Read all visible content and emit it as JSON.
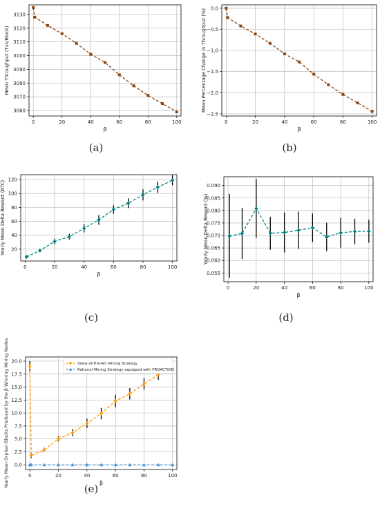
{
  "panel_labels": [
    "(a)",
    "(b)",
    "(c)",
    "(d)",
    "(e)"
  ],
  "chart_data": [
    {
      "type": "line",
      "panel": "(a)",
      "xlabel": "β",
      "ylabel": "Mean Throughput (Txs/Block)",
      "xlim": [
        -3,
        103
      ],
      "ylim": [
        3056,
        3137
      ],
      "xticks": [
        0,
        20,
        40,
        60,
        80,
        100
      ],
      "yticks": [
        3060,
        3070,
        3080,
        3090,
        3100,
        3110,
        3120,
        3130
      ],
      "grid": true,
      "series": [
        {
          "color": "#8B4513",
          "x": [
            0,
            1,
            10,
            20,
            30,
            40,
            50,
            60,
            70,
            80,
            90,
            100
          ],
          "y": [
            3135,
            3128,
            3122,
            3116,
            3109,
            3101,
            3095,
            3086,
            3078,
            3071,
            3065,
            3059
          ]
        }
      ]
    },
    {
      "type": "line",
      "panel": "(b)",
      "xlabel": "β",
      "ylabel": "Mean Percentage Change in Throughput (%)",
      "xlim": [
        -3,
        103
      ],
      "ylim": [
        -2.55,
        0.08
      ],
      "xticks": [
        0,
        20,
        40,
        60,
        80,
        100
      ],
      "yticks": [
        0.0,
        -0.5,
        -1.0,
        -1.5,
        -2.0,
        -2.5
      ],
      "ytick_labels": [
        "0.0",
        "−0.5",
        "−1.0",
        "−1.5",
        "−2.0",
        "−2.5"
      ],
      "grid": true,
      "series": [
        {
          "color": "#8B4513",
          "x": [
            0,
            1,
            10,
            20,
            30,
            40,
            50,
            60,
            70,
            80,
            90,
            100
          ],
          "y": [
            0.0,
            -0.22,
            -0.42,
            -0.61,
            -0.83,
            -1.08,
            -1.27,
            -1.56,
            -1.81,
            -2.04,
            -2.24,
            -2.44
          ]
        }
      ]
    },
    {
      "type": "line",
      "panel": "(c)",
      "xlabel": "β",
      "ylabel": "Yearly Mean Delta Reward (BTC)",
      "xlim": [
        -3,
        103
      ],
      "ylim": [
        3,
        127
      ],
      "xticks": [
        0,
        20,
        40,
        60,
        80,
        100
      ],
      "yticks": [
        20,
        40,
        60,
        80,
        100,
        120
      ],
      "grid": true,
      "series": [
        {
          "color": "#008080",
          "x": [
            1,
            10,
            20,
            30,
            40,
            50,
            60,
            70,
            80,
            90,
            100
          ],
          "y": [
            9,
            18,
            31,
            38,
            50,
            62,
            77,
            86,
            98,
            109,
            119
          ],
          "err": [
            1,
            2,
            4,
            4,
            6,
            7,
            6,
            7,
            8,
            8,
            7
          ]
        }
      ]
    },
    {
      "type": "line",
      "panel": "(d)",
      "xlabel": "β",
      "ylabel": "Yearly Mean Delta Reward (%)",
      "xlim": [
        -3,
        103
      ],
      "ylim": [
        0.0515,
        0.0935
      ],
      "xticks": [
        0,
        20,
        40,
        60,
        80,
        100
      ],
      "yticks": [
        0.055,
        0.06,
        0.065,
        0.07,
        0.075,
        0.08,
        0.085,
        0.09
      ],
      "ytick_labels": [
        "0.055",
        "0.060",
        "0.065",
        "0.070",
        "0.075",
        "0.080",
        "0.085",
        "0.090"
      ],
      "grid": true,
      "series": [
        {
          "color": "#008080",
          "x": [
            1,
            10,
            20,
            30,
            40,
            50,
            60,
            70,
            80,
            90,
            100
          ],
          "y": [
            0.0698,
            0.0708,
            0.0808,
            0.0709,
            0.0712,
            0.0721,
            0.0731,
            0.0694,
            0.0711,
            0.0716,
            0.0717
          ],
          "err": [
            0.0168,
            0.0102,
            0.0118,
            0.0066,
            0.008,
            0.0075,
            0.0057,
            0.0057,
            0.006,
            0.0051,
            0.0046
          ]
        }
      ]
    },
    {
      "type": "line",
      "panel": "(e)",
      "xlabel": "β",
      "ylabel": "Yearly Mean Orphan Blocks Produced by the β Winning Mining Nodes",
      "xlim": [
        -3,
        103
      ],
      "ylim": [
        -0.9,
        20.8
      ],
      "xticks": [
        0,
        20,
        40,
        60,
        80,
        100
      ],
      "yticks": [
        0.0,
        2.5,
        5.0,
        7.5,
        10.0,
        12.5,
        15.0,
        17.5,
        20.0
      ],
      "ytick_labels": [
        "0.0",
        "2.5",
        "5.0",
        "7.5",
        "10.0",
        "12.5",
        "15.0",
        "17.5",
        "20.0"
      ],
      "grid": true,
      "legend": "top-left",
      "series": [
        {
          "name": "State-of-The-Art Mining Strategy",
          "color": "#FF9900",
          "marker": "diamond",
          "x": [
            0,
            1,
            10,
            20,
            30,
            40,
            50,
            60,
            70,
            80,
            90
          ],
          "y": [
            19.0,
            1.8,
            2.9,
            5.0,
            6.2,
            8.0,
            9.9,
            12.3,
            13.7,
            15.6,
            17.4
          ],
          "err": [
            1.0,
            0.5,
            0.4,
            0.5,
            0.7,
            0.9,
            1.1,
            1.2,
            1.1,
            1.1,
            1.0
          ]
        },
        {
          "name": "Rational Mining Strategy equipped with PROACTION",
          "color": "#4A90D9",
          "marker": "triangle",
          "x": [
            0,
            1,
            10,
            20,
            30,
            40,
            50,
            60,
            70,
            80,
            90,
            100
          ],
          "y": [
            0,
            0,
            0,
            0,
            0,
            0,
            0,
            0,
            0,
            0,
            0,
            0
          ]
        }
      ]
    }
  ]
}
